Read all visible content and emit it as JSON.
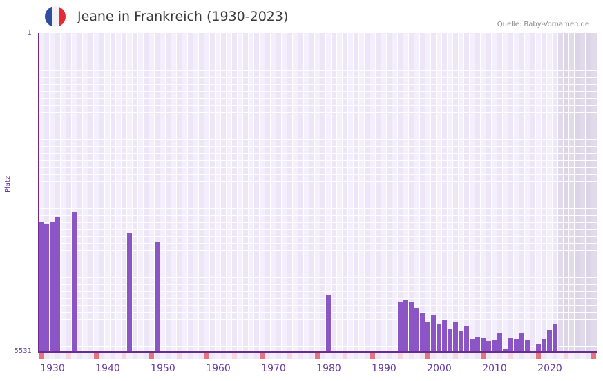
{
  "header": {
    "title": "Jeane in Frankreich (1930-2023)",
    "source": "Quelle: Baby-Vornamen.de",
    "flag": {
      "country": "France",
      "colors": [
        "#2f4ea0",
        "#f2f2f4",
        "#e52b35"
      ]
    }
  },
  "colors": {
    "bar": "#8c55c5",
    "axis": "#6b2c8f",
    "decade_marker": "#e5747c",
    "mid_marker": "#f5d6e0",
    "plot_bg": "#f3effc",
    "plot_bg_alt": "#ece6f7"
  },
  "chart_data": {
    "type": "bar",
    "title": "Jeane in Frankreich (1930-2023)",
    "xlabel": "",
    "ylabel": "Platz",
    "y_axis_inverted": true,
    "ylim": [
      5531,
      1
    ],
    "y_tick_labels": [
      "1",
      "5531"
    ],
    "x_range": [
      1928,
      2028
    ],
    "x_tick_labels": [
      "1930",
      "1940",
      "1950",
      "1960",
      "1970",
      "1980",
      "1990",
      "2000",
      "2010",
      "2020"
    ],
    "future_shaded_from": 2022,
    "grid": true,
    "legend": null,
    "categories": [
      1928,
      1929,
      1930,
      1931,
      1934,
      1944,
      1949,
      1980,
      1993,
      1994,
      1995,
      1996,
      1997,
      1998,
      1999,
      2000,
      2001,
      2002,
      2003,
      2004,
      2005,
      2006,
      2007,
      2008,
      2009,
      2010,
      2011,
      2012,
      2013,
      2014,
      2015,
      2016,
      2018,
      2019,
      2020,
      2021
    ],
    "series": [
      {
        "name": "Platz",
        "values": [
          3268,
          3316,
          3280,
          3185,
          3101,
          3460,
          3628,
          4537,
          4669,
          4633,
          4669,
          4765,
          4861,
          5004,
          4897,
          5040,
          4980,
          5136,
          5016,
          5172,
          5088,
          5303,
          5267,
          5291,
          5339,
          5315,
          5208,
          5471,
          5291,
          5303,
          5196,
          5315,
          5399,
          5303,
          5148,
          5052
        ]
      }
    ]
  }
}
